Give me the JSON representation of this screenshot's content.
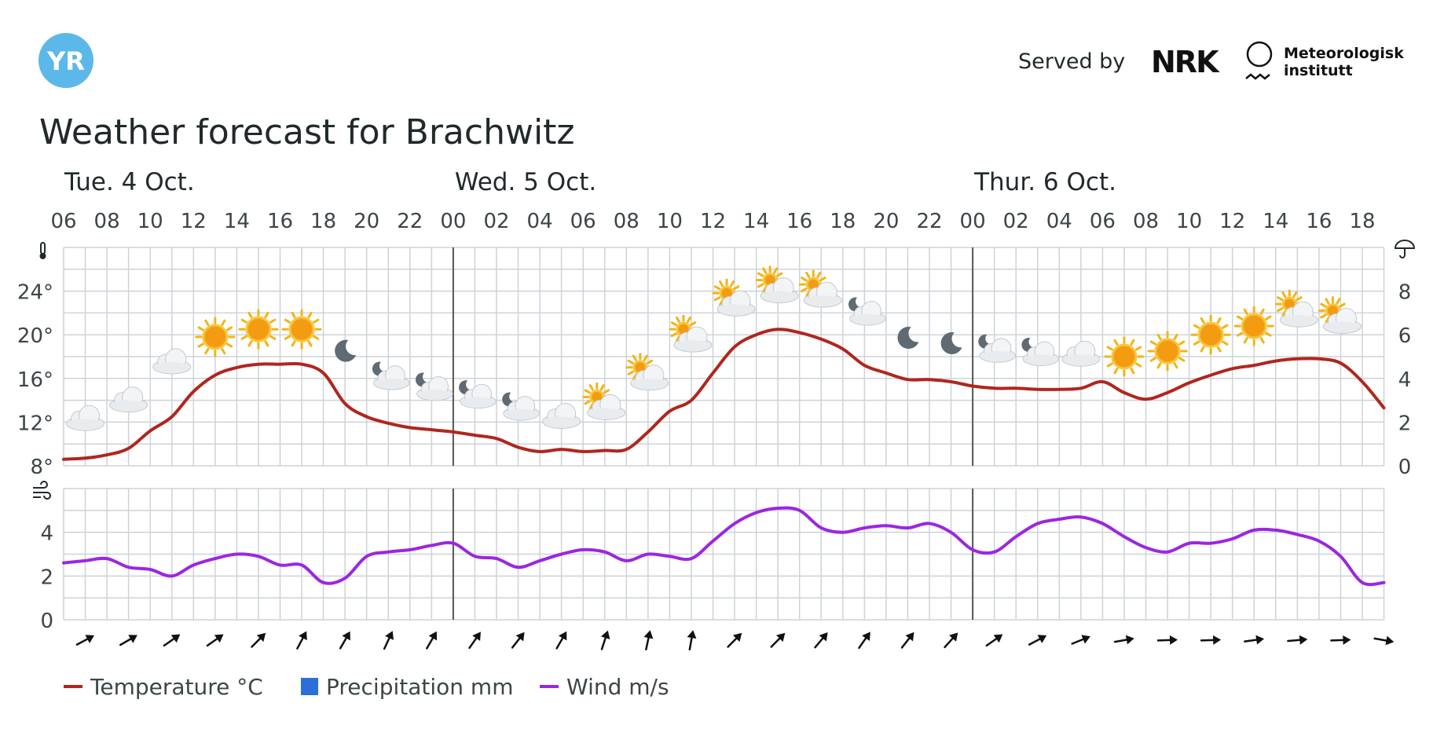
{
  "header": {
    "logo_text": "YR",
    "served_by": "Served by",
    "nrk_logo_text": "NRK",
    "met_line1": "Meteorologisk",
    "met_line2": "institutt"
  },
  "title": "Weather forecast for Brachwitz",
  "colors": {
    "temperature": "#b0261e",
    "precipitation": "#2b6fd8",
    "wind": "#9b27e0",
    "grid": "#cdd3d8",
    "day_divider": "#555555",
    "logo": "#5cb8e8",
    "text": "#21292b"
  },
  "legend": [
    {
      "label": "Temperature °C",
      "icon": "line",
      "color": "#b0261e"
    },
    {
      "label": "Precipitation mm",
      "icon": "square",
      "color": "#2b6fd8"
    },
    {
      "label": "Wind m/s",
      "icon": "line",
      "color": "#9b27e0"
    }
  ],
  "chart_data": {
    "type": "line",
    "x_unit": "hour from Tue 4 Oct 06:00",
    "days": [
      {
        "label": "Tue. 4 Oct.",
        "start_hour": 0
      },
      {
        "label": "Wed. 5 Oct.",
        "start_hour": 18
      },
      {
        "label": "Thur. 6 Oct.",
        "start_hour": 42
      }
    ],
    "tick_labels": [
      "06",
      "08",
      "10",
      "12",
      "14",
      "16",
      "18",
      "20",
      "22",
      "00",
      "02",
      "04",
      "06",
      "08",
      "10",
      "12",
      "14",
      "16",
      "18",
      "20",
      "22",
      "00",
      "02",
      "04",
      "06",
      "08",
      "10",
      "12",
      "14",
      "16",
      "18"
    ],
    "x_range": [
      0,
      61
    ],
    "temperature": {
      "name": "Temperature °C",
      "y_axis_ticks": [
        "24°",
        "20°",
        "16°",
        "12°",
        "8°"
      ],
      "ylim": [
        8,
        28
      ],
      "points": [
        [
          0,
          8.6
        ],
        [
          1,
          8.7
        ],
        [
          2,
          9.0
        ],
        [
          3,
          9.6
        ],
        [
          4,
          11.2
        ],
        [
          5,
          12.5
        ],
        [
          6,
          14.8
        ],
        [
          7,
          16.3
        ],
        [
          8,
          17.0
        ],
        [
          9,
          17.3
        ],
        [
          10,
          17.3
        ],
        [
          11,
          17.3
        ],
        [
          12,
          16.5
        ],
        [
          13,
          13.7
        ],
        [
          14,
          12.5
        ],
        [
          15,
          11.9
        ],
        [
          16,
          11.5
        ],
        [
          17,
          11.3
        ],
        [
          18,
          11.1
        ],
        [
          19,
          10.8
        ],
        [
          20,
          10.5
        ],
        [
          21,
          9.7
        ],
        [
          22,
          9.3
        ],
        [
          23,
          9.5
        ],
        [
          24,
          9.3
        ],
        [
          25,
          9.4
        ],
        [
          26,
          9.5
        ],
        [
          27,
          11.1
        ],
        [
          28,
          13.0
        ],
        [
          29,
          14.0
        ],
        [
          30,
          16.5
        ],
        [
          31,
          18.9
        ],
        [
          32,
          20.0
        ],
        [
          33,
          20.5
        ],
        [
          34,
          20.2
        ],
        [
          35,
          19.6
        ],
        [
          36,
          18.7
        ],
        [
          37,
          17.2
        ],
        [
          38,
          16.5
        ],
        [
          39,
          15.9
        ],
        [
          40,
          15.9
        ],
        [
          41,
          15.7
        ],
        [
          42,
          15.3
        ],
        [
          43,
          15.1
        ],
        [
          44,
          15.1
        ],
        [
          45,
          15.0
        ],
        [
          46,
          15.0
        ],
        [
          47,
          15.1
        ],
        [
          48,
          15.7
        ],
        [
          49,
          14.7
        ],
        [
          50,
          14.1
        ],
        [
          51,
          14.7
        ],
        [
          52,
          15.6
        ],
        [
          53,
          16.3
        ],
        [
          54,
          16.9
        ],
        [
          55,
          17.2
        ],
        [
          56,
          17.6
        ],
        [
          57,
          17.8
        ],
        [
          58,
          17.8
        ],
        [
          59,
          17.4
        ],
        [
          60,
          15.7
        ],
        [
          61,
          13.3
        ]
      ]
    },
    "precipitation": {
      "name": "Precipitation mm",
      "y_axis_ticks": [
        "8",
        "6",
        "4",
        "2",
        "0"
      ],
      "ylim": [
        0,
        10
      ],
      "values": []
    },
    "wind": {
      "name": "Wind m/s",
      "y_axis_ticks": [
        "4",
        "2",
        "0"
      ],
      "ylim": [
        0,
        6
      ],
      "points": [
        [
          0,
          2.6
        ],
        [
          1,
          2.7
        ],
        [
          2,
          2.8
        ],
        [
          3,
          2.4
        ],
        [
          4,
          2.3
        ],
        [
          5,
          2.0
        ],
        [
          6,
          2.5
        ],
        [
          7,
          2.8
        ],
        [
          8,
          3.0
        ],
        [
          9,
          2.9
        ],
        [
          10,
          2.5
        ],
        [
          11,
          2.5
        ],
        [
          12,
          1.7
        ],
        [
          13,
          1.9
        ],
        [
          14,
          2.9
        ],
        [
          15,
          3.1
        ],
        [
          16,
          3.2
        ],
        [
          17,
          3.4
        ],
        [
          18,
          3.5
        ],
        [
          19,
          2.9
        ],
        [
          20,
          2.8
        ],
        [
          21,
          2.4
        ],
        [
          22,
          2.7
        ],
        [
          23,
          3.0
        ],
        [
          24,
          3.2
        ],
        [
          25,
          3.1
        ],
        [
          26,
          2.7
        ],
        [
          27,
          3.0
        ],
        [
          28,
          2.9
        ],
        [
          29,
          2.8
        ],
        [
          30,
          3.6
        ],
        [
          31,
          4.4
        ],
        [
          32,
          4.9
        ],
        [
          33,
          5.1
        ],
        [
          34,
          5.0
        ],
        [
          35,
          4.2
        ],
        [
          36,
          4.0
        ],
        [
          37,
          4.2
        ],
        [
          38,
          4.3
        ],
        [
          39,
          4.2
        ],
        [
          40,
          4.4
        ],
        [
          41,
          4.0
        ],
        [
          42,
          3.2
        ],
        [
          43,
          3.1
        ],
        [
          44,
          3.8
        ],
        [
          45,
          4.4
        ],
        [
          46,
          4.6
        ],
        [
          47,
          4.7
        ],
        [
          48,
          4.4
        ],
        [
          49,
          3.8
        ],
        [
          50,
          3.3
        ],
        [
          51,
          3.1
        ],
        [
          52,
          3.5
        ],
        [
          53,
          3.5
        ],
        [
          54,
          3.7
        ],
        [
          55,
          4.1
        ],
        [
          56,
          4.1
        ],
        [
          57,
          3.9
        ],
        [
          58,
          3.6
        ],
        [
          59,
          2.9
        ],
        [
          60,
          1.7
        ],
        [
          61,
          1.7
        ]
      ]
    },
    "weather_symbols": [
      {
        "hour": 1,
        "temp": 12.3,
        "symbol": "cloudy"
      },
      {
        "hour": 3,
        "temp": 14.0,
        "symbol": "cloudy"
      },
      {
        "hour": 5,
        "temp": 17.5,
        "symbol": "cloudy"
      },
      {
        "hour": 7,
        "temp": 19.8,
        "symbol": "clear-day"
      },
      {
        "hour": 9,
        "temp": 20.5,
        "symbol": "clear-day"
      },
      {
        "hour": 11,
        "temp": 20.5,
        "symbol": "clear-day"
      },
      {
        "hour": 13,
        "temp": 18.5,
        "symbol": "clear-night"
      },
      {
        "hour": 15,
        "temp": 16.0,
        "symbol": "partly-cloudy-night"
      },
      {
        "hour": 17,
        "temp": 15.0,
        "symbol": "partly-cloudy-night"
      },
      {
        "hour": 19,
        "temp": 14.3,
        "symbol": "partly-cloudy-night"
      },
      {
        "hour": 21,
        "temp": 13.2,
        "symbol": "partly-cloudy-night"
      },
      {
        "hour": 23,
        "temp": 12.5,
        "symbol": "cloudy"
      },
      {
        "hour": 25,
        "temp": 13.3,
        "symbol": "partly-cloudy-day"
      },
      {
        "hour": 27,
        "temp": 16.0,
        "symbol": "partly-cloudy-day"
      },
      {
        "hour": 29,
        "temp": 19.5,
        "symbol": "partly-cloudy-day"
      },
      {
        "hour": 31,
        "temp": 22.8,
        "symbol": "partly-cloudy-day"
      },
      {
        "hour": 33,
        "temp": 24.0,
        "symbol": "partly-cloudy-day"
      },
      {
        "hour": 35,
        "temp": 23.6,
        "symbol": "partly-cloudy-day"
      },
      {
        "hour": 37,
        "temp": 21.9,
        "symbol": "partly-cloudy-night"
      },
      {
        "hour": 39,
        "temp": 19.7,
        "symbol": "clear-night"
      },
      {
        "hour": 41,
        "temp": 19.2,
        "symbol": "clear-night"
      },
      {
        "hour": 43,
        "temp": 18.5,
        "symbol": "partly-cloudy-night"
      },
      {
        "hour": 45,
        "temp": 18.2,
        "symbol": "partly-cloudy-night"
      },
      {
        "hour": 47,
        "temp": 18.2,
        "symbol": "cloudy"
      },
      {
        "hour": 49,
        "temp": 18.0,
        "symbol": "clear-day"
      },
      {
        "hour": 51,
        "temp": 18.5,
        "symbol": "clear-day"
      },
      {
        "hour": 53,
        "temp": 20.0,
        "symbol": "clear-day"
      },
      {
        "hour": 55,
        "temp": 20.8,
        "symbol": "clear-day"
      },
      {
        "hour": 57,
        "temp": 21.8,
        "symbol": "partly-cloudy-day"
      },
      {
        "hour": 59,
        "temp": 21.2,
        "symbol": "partly-cloudy-day"
      }
    ],
    "wind_arrows": [
      {
        "hour": 1,
        "to_direction_deg": 62
      },
      {
        "hour": 3,
        "to_direction_deg": 60
      },
      {
        "hour": 5,
        "to_direction_deg": 55
      },
      {
        "hour": 7,
        "to_direction_deg": 55
      },
      {
        "hour": 9,
        "to_direction_deg": 45
      },
      {
        "hour": 11,
        "to_direction_deg": 28
      },
      {
        "hour": 13,
        "to_direction_deg": 30
      },
      {
        "hour": 15,
        "to_direction_deg": 25
      },
      {
        "hour": 17,
        "to_direction_deg": 30
      },
      {
        "hour": 19,
        "to_direction_deg": 35
      },
      {
        "hour": 21,
        "to_direction_deg": 38
      },
      {
        "hour": 23,
        "to_direction_deg": 30
      },
      {
        "hour": 25,
        "to_direction_deg": 18
      },
      {
        "hour": 27,
        "to_direction_deg": 12
      },
      {
        "hour": 29,
        "to_direction_deg": 10
      },
      {
        "hour": 31,
        "to_direction_deg": 45
      },
      {
        "hour": 33,
        "to_direction_deg": 45
      },
      {
        "hour": 35,
        "to_direction_deg": 40
      },
      {
        "hour": 37,
        "to_direction_deg": 35
      },
      {
        "hour": 39,
        "to_direction_deg": 38
      },
      {
        "hour": 41,
        "to_direction_deg": 42
      },
      {
        "hour": 43,
        "to_direction_deg": 55
      },
      {
        "hour": 45,
        "to_direction_deg": 62
      },
      {
        "hour": 47,
        "to_direction_deg": 68
      },
      {
        "hour": 49,
        "to_direction_deg": 80
      },
      {
        "hour": 51,
        "to_direction_deg": 88
      },
      {
        "hour": 53,
        "to_direction_deg": 88
      },
      {
        "hour": 55,
        "to_direction_deg": 82
      },
      {
        "hour": 57,
        "to_direction_deg": 85
      },
      {
        "hour": 59,
        "to_direction_deg": 88
      },
      {
        "hour": 61,
        "to_direction_deg": 100
      }
    ]
  }
}
